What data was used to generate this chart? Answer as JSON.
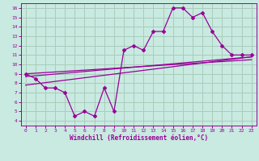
{
  "xlabel": "Windchill (Refroidissement éolien,°C)",
  "bg_color": "#c8eae0",
  "line_color": "#990099",
  "grid_color": "#aaccbb",
  "x_ticks": [
    0,
    1,
    2,
    3,
    4,
    5,
    6,
    7,
    8,
    9,
    10,
    11,
    12,
    13,
    14,
    15,
    16,
    17,
    18,
    19,
    20,
    21,
    22,
    23
  ],
  "y_ticks": [
    4,
    5,
    6,
    7,
    8,
    9,
    10,
    11,
    12,
    13,
    14,
    15,
    16
  ],
  "xlim": [
    -0.5,
    23.5
  ],
  "ylim": [
    3.5,
    16.5
  ],
  "main_line_x": [
    0,
    1,
    2,
    3,
    4,
    5,
    6,
    7,
    8,
    9,
    10,
    11,
    12,
    13,
    14,
    15,
    16,
    17,
    18,
    19,
    20,
    21,
    22,
    23
  ],
  "main_line_y": [
    9.0,
    8.5,
    7.5,
    7.5,
    7.0,
    4.5,
    5.0,
    4.5,
    7.5,
    5.0,
    11.5,
    12.0,
    11.5,
    13.5,
    13.5,
    16.0,
    16.0,
    15.0,
    15.5,
    13.5,
    12.0,
    11.0,
    11.0,
    11.0
  ],
  "line1_x": [
    0,
    23
  ],
  "line1_y": [
    9.0,
    10.5
  ],
  "line2_x": [
    0,
    23
  ],
  "line2_y": [
    8.7,
    10.8
  ],
  "line3_x": [
    0,
    23
  ],
  "line3_y": [
    7.8,
    10.8
  ]
}
